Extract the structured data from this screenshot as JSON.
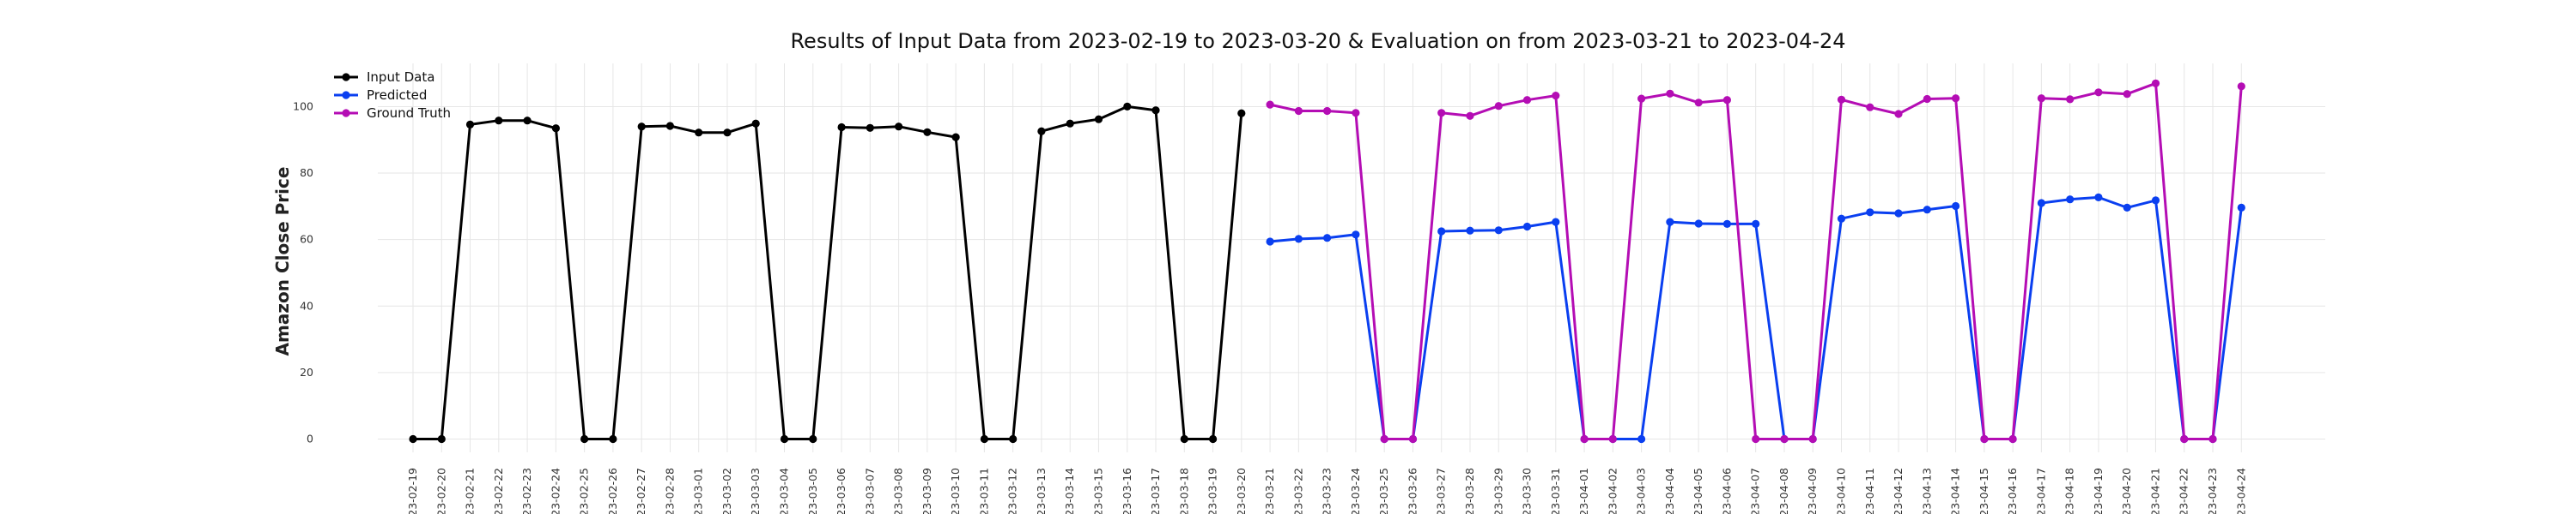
{
  "chart_data": {
    "type": "line",
    "title": "Results of Input Data from 2023-02-19 to 2023-03-20 & Evaluation on from 2023-03-21 to 2023-04-24",
    "xlabel": "",
    "ylabel": "Amazon Close Price",
    "ylim": [
      -4,
      113
    ],
    "yticks": [
      0,
      20,
      40,
      60,
      80,
      100
    ],
    "ytick_labels": [
      "0",
      "20",
      "40",
      "60",
      "80",
      "100"
    ],
    "grid": true,
    "legend_position": "top-left",
    "categories": [
      "2023-02-19",
      "2023-02-20",
      "2023-02-21",
      "2023-02-22",
      "2023-02-23",
      "2023-02-24",
      "2023-02-25",
      "2023-02-26",
      "2023-02-27",
      "2023-02-28",
      "2023-03-01",
      "2023-03-02",
      "2023-03-03",
      "2023-03-04",
      "2023-03-05",
      "2023-03-06",
      "2023-03-07",
      "2023-03-08",
      "2023-03-09",
      "2023-03-10",
      "2023-03-11",
      "2023-03-12",
      "2023-03-13",
      "2023-03-14",
      "2023-03-15",
      "2023-03-16",
      "2023-03-17",
      "2023-03-18",
      "2023-03-19",
      "2023-03-20",
      "2023-03-21",
      "2023-03-22",
      "2023-03-23",
      "2023-03-24",
      "2023-03-25",
      "2023-03-26",
      "2023-03-27",
      "2023-03-28",
      "2023-03-29",
      "2023-03-30",
      "2023-03-31",
      "2023-04-01",
      "2023-04-02",
      "2023-04-03",
      "2023-04-04",
      "2023-04-05",
      "2023-04-06",
      "2023-04-07",
      "2023-04-08",
      "2023-04-09",
      "2023-04-10",
      "2023-04-11",
      "2023-04-12",
      "2023-04-13",
      "2023-04-14",
      "2023-04-15",
      "2023-04-16",
      "2023-04-17",
      "2023-04-18",
      "2023-04-19",
      "2023-04-20",
      "2023-04-21",
      "2023-04-22",
      "2023-04-23",
      "2023-04-24"
    ],
    "tick_labels": [
      "-23-02-19",
      "-23-02-20",
      "-23-02-21",
      "-23-02-22",
      "-23-02-23",
      "-23-02-24",
      "-23-02-25",
      "-23-02-26",
      "-23-02-27",
      "-23-02-28",
      "-23-03-01",
      "-23-03-02",
      "-23-03-03",
      "-23-03-04",
      "-23-03-05",
      "-23-03-06",
      "-23-03-07",
      "-23-03-08",
      "-23-03-09",
      "-23-03-10",
      "-23-03-11",
      "-23-03-12",
      "-23-03-13",
      "-23-03-14",
      "-23-03-15",
      "-23-03-16",
      "-23-03-17",
      "-23-03-18",
      "-23-03-19",
      "-23-03-20",
      "-23-03-21",
      "-23-03-22",
      "-23-03-23",
      "-23-03-24",
      "-23-03-25",
      "-23-03-26",
      "-23-03-27",
      "-23-03-28",
      "-23-03-29",
      "-23-03-30",
      "-23-03-31",
      "-23-04-01",
      "-23-04-02",
      "-23-04-03",
      "-23-04-04",
      "-23-04-05",
      "-23-04-06",
      "-23-04-07",
      "-23-04-08",
      "-23-04-09",
      "-23-04-10",
      "-23-04-11",
      "-23-04-12",
      "-23-04-13",
      "-23-04-14",
      "-23-04-15",
      "-23-04-16",
      "-23-04-17",
      "-23-04-18",
      "-23-04-19",
      "-23-04-20",
      "-23-04-21",
      "-23-04-22",
      "-23-04-23",
      "-23-04-24"
    ],
    "series": [
      {
        "name": "Input Data",
        "color": "#000000",
        "x": [
          "2023-02-19",
          "2023-02-20",
          "2023-02-21",
          "2023-02-22",
          "2023-02-23",
          "2023-02-24",
          "2023-02-25",
          "2023-02-26",
          "2023-02-27",
          "2023-02-28",
          "2023-03-01",
          "2023-03-02",
          "2023-03-03",
          "2023-03-04",
          "2023-03-05",
          "2023-03-06",
          "2023-03-07",
          "2023-03-08",
          "2023-03-09",
          "2023-03-10",
          "2023-03-11",
          "2023-03-12",
          "2023-03-13",
          "2023-03-14",
          "2023-03-15",
          "2023-03-16",
          "2023-03-17",
          "2023-03-18",
          "2023-03-19",
          "2023-03-20"
        ],
        "values": [
          0,
          0,
          94.6,
          95.8,
          95.8,
          93.5,
          0,
          0,
          94.0,
          94.2,
          92.2,
          92.2,
          94.9,
          0,
          0,
          93.8,
          93.6,
          94.0,
          92.3,
          90.8,
          0,
          0,
          92.6,
          94.9,
          96.2,
          100.0,
          98.9,
          0,
          0,
          98.0
        ]
      },
      {
        "name": "Predicted",
        "color": "#0a3ff0",
        "x": [
          "2023-03-21",
          "2023-03-22",
          "2023-03-23",
          "2023-03-24",
          "2023-03-25",
          "2023-03-26",
          "2023-03-27",
          "2023-03-28",
          "2023-03-29",
          "2023-03-30",
          "2023-03-31",
          "2023-04-01",
          "2023-04-02",
          "2023-04-03",
          "2023-04-04",
          "2023-04-05",
          "2023-04-06",
          "2023-04-07",
          "2023-04-08",
          "2023-04-09",
          "2023-04-10",
          "2023-04-11",
          "2023-04-12",
          "2023-04-13",
          "2023-04-14",
          "2023-04-15",
          "2023-04-16",
          "2023-04-17",
          "2023-04-18",
          "2023-04-19",
          "2023-04-20",
          "2023-04-21",
          "2023-04-22",
          "2023-04-23",
          "2023-04-24"
        ],
        "values": [
          59.4,
          60.2,
          60.5,
          61.5,
          0,
          0,
          62.5,
          62.7,
          62.8,
          63.9,
          65.3,
          0,
          0,
          0,
          65.3,
          64.8,
          64.7,
          64.7,
          0,
          0,
          66.3,
          68.2,
          67.9,
          69.0,
          70.1,
          0,
          0,
          71.0,
          72.1,
          72.7,
          69.6,
          71.8,
          0,
          0,
          69.6
        ]
      },
      {
        "name": "Ground Truth",
        "color": "#b40db4",
        "x": [
          "2023-03-21",
          "2023-03-22",
          "2023-03-23",
          "2023-03-24",
          "2023-03-25",
          "2023-03-26",
          "2023-03-27",
          "2023-03-28",
          "2023-03-29",
          "2023-03-30",
          "2023-03-31",
          "2023-04-01",
          "2023-04-02",
          "2023-04-03",
          "2023-04-04",
          "2023-04-05",
          "2023-04-06",
          "2023-04-07",
          "2023-04-08",
          "2023-04-09",
          "2023-04-10",
          "2023-04-11",
          "2023-04-12",
          "2023-04-13",
          "2023-04-14",
          "2023-04-15",
          "2023-04-16",
          "2023-04-17",
          "2023-04-18",
          "2023-04-19",
          "2023-04-20",
          "2023-04-21",
          "2023-04-22",
          "2023-04-23",
          "2023-04-24"
        ],
        "values": [
          100.6,
          98.7,
          98.7,
          98.1,
          0,
          0,
          98.1,
          97.2,
          100.2,
          102.0,
          103.3,
          0,
          0,
          102.4,
          103.9,
          101.2,
          102.0,
          0,
          0,
          0,
          102.1,
          99.8,
          97.8,
          102.3,
          102.5,
          0,
          0,
          102.5,
          102.2,
          104.3,
          103.8,
          107.0,
          0,
          0,
          106.1
        ]
      }
    ]
  }
}
